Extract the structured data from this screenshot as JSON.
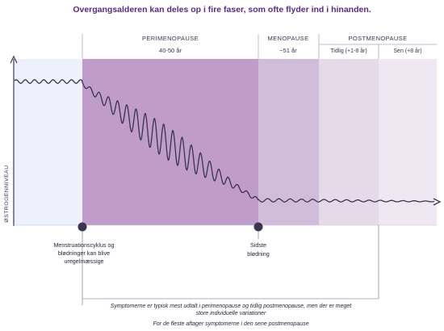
{
  "title": "Overgangsalderen kan deles op i fire faser, som ofte flyder ind i hinanden.",
  "y_axis_label": "ØSTROGENNIVEAU",
  "phases": {
    "perimenopause": {
      "label": "PERIMENOPAUSE",
      "sub": "40-50 år"
    },
    "menopause": {
      "label": "MENOPAUSE",
      "sub": "~51 år"
    },
    "postmenopause": {
      "label": "POSTMENOPAUSE",
      "early": "Tidlig (+1-8 år)",
      "late": "Sen (+8 år)"
    }
  },
  "markers": {
    "start": [
      "Menstruationscyklus og",
      "blødninger kan  blive",
      "uregelmæssige"
    ],
    "end": [
      "Sidste",
      "blødning"
    ]
  },
  "notes": {
    "line1": "Symptomerne er typisk mest udtalt i perimenopause og tidlig postmenopause,  men der er meget",
    "line2": "store individuelle variationer",
    "line3": "For de fleste aftager symptomerne i den sene postmenopause"
  },
  "colors": {
    "pre": "#eef1fb",
    "peri": "#c09ccb",
    "meno": "#d2bcdc",
    "post_early": "#e6dae9",
    "post_late": "#efe7f1",
    "axis": "#4a4660",
    "curve": "#3a3450",
    "marker": "#3e3452",
    "title": "#5b2a80"
  }
}
